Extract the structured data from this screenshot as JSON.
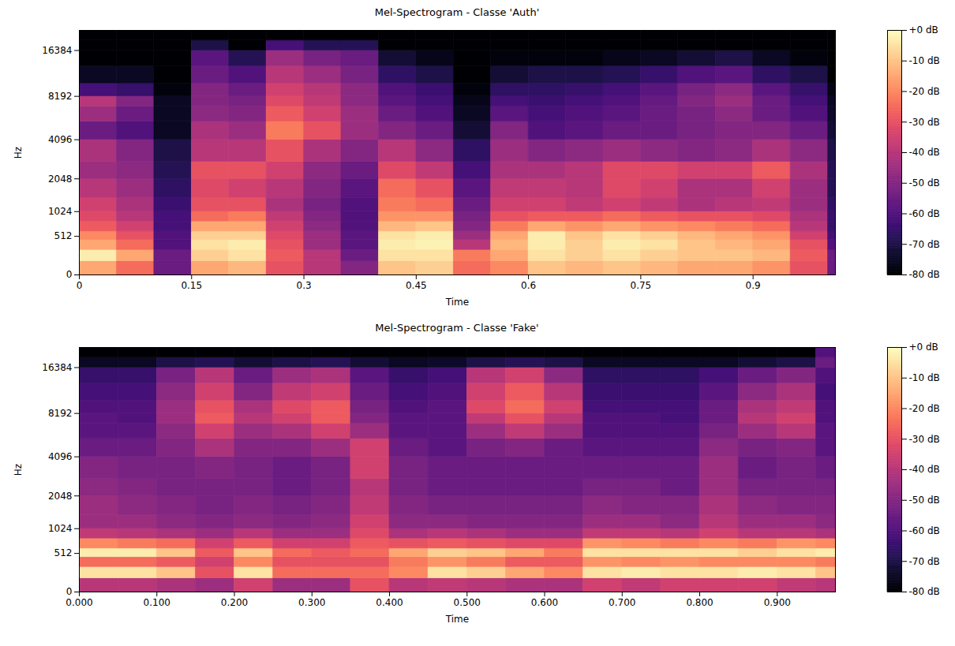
{
  "chart_data": [
    {
      "type": "heatmap",
      "title": "Mel-Spectrogram - Classe 'Auth'",
      "xlabel": "Time",
      "ylabel": "Hz",
      "xlim": [
        0,
        1.01
      ],
      "xticks": [
        0,
        0.15,
        0.3,
        0.45,
        0.6,
        0.75,
        0.9
      ],
      "ylim": [
        0,
        22050
      ],
      "yticks": [
        0,
        512,
        1024,
        2048,
        4096,
        8192,
        16384
      ],
      "color": "magma",
      "colorbar": {
        "lim": [
          -80,
          0
        ],
        "ticks": [
          {
            "value": 0,
            "label": "+0 dB"
          },
          {
            "value": -10,
            "label": "-10 dB"
          },
          {
            "value": -20,
            "label": "-20 dB"
          },
          {
            "value": -30,
            "label": "-30 dB"
          },
          {
            "value": -40,
            "label": "-40 dB"
          },
          {
            "value": -50,
            "label": "-50 dB"
          },
          {
            "value": -60,
            "label": "-60 dB"
          },
          {
            "value": -70,
            "label": "-70 dB"
          },
          {
            "value": -80,
            "label": "-80 dB"
          }
        ]
      },
      "x_edges": [
        0,
        0.05,
        0.1,
        0.15,
        0.2,
        0.25,
        0.3,
        0.35,
        0.4,
        0.45,
        0.5,
        0.55,
        0.6,
        0.65,
        0.7,
        0.75,
        0.8,
        0.85,
        0.9,
        0.95,
        1,
        1.01
      ],
      "y_edges": [
        0,
        150,
        300,
        450,
        600,
        800,
        1024,
        1400,
        2048,
        2800,
        4096,
        5500,
        7000,
        8192,
        10000,
        13000,
        16384,
        19000,
        22050
      ],
      "values": [
        [
          -15,
          -25,
          -55,
          -15,
          -12,
          -30,
          -40,
          -50,
          -10,
          -8,
          -25,
          -20,
          -10,
          -12,
          -10,
          -12,
          -15,
          -15,
          -18,
          -30,
          -55
        ],
        [
          -3,
          -15,
          -55,
          -8,
          -5,
          -28,
          -40,
          -55,
          -5,
          -5,
          -22,
          -15,
          -5,
          -8,
          -5,
          -8,
          -10,
          -10,
          -12,
          -28,
          -55
        ],
        [
          -15,
          -25,
          -60,
          -5,
          -3,
          -30,
          -45,
          -58,
          -3,
          -2,
          -40,
          -12,
          -3,
          -8,
          -3,
          -5,
          -10,
          -12,
          -15,
          -30,
          -60
        ],
        [
          -20,
          -30,
          -60,
          -8,
          -8,
          -32,
          -45,
          -58,
          -5,
          -3,
          -45,
          -15,
          -3,
          -10,
          -5,
          -8,
          -12,
          -15,
          -18,
          -35,
          -62
        ],
        [
          -28,
          -35,
          -62,
          -15,
          -15,
          -35,
          -48,
          -60,
          -12,
          -10,
          -50,
          -22,
          -15,
          -18,
          -15,
          -18,
          -20,
          -22,
          -25,
          -40,
          -65
        ],
        [
          -32,
          -40,
          -62,
          -25,
          -22,
          -38,
          -50,
          -60,
          -18,
          -18,
          -52,
          -30,
          -28,
          -28,
          -25,
          -28,
          -30,
          -30,
          -32,
          -42,
          -65
        ],
        [
          -35,
          -42,
          -64,
          -30,
          -30,
          -42,
          -52,
          -60,
          -22,
          -25,
          -55,
          -35,
          -35,
          -38,
          -35,
          -38,
          -42,
          -40,
          -38,
          -45,
          -66
        ],
        [
          -40,
          -45,
          -66,
          -32,
          -35,
          -40,
          -50,
          -58,
          -25,
          -30,
          -58,
          -38,
          -38,
          -40,
          -32,
          -35,
          -42,
          -42,
          -35,
          -45,
          -68
        ],
        [
          -45,
          -48,
          -68,
          -30,
          -30,
          -35,
          -48,
          -55,
          -32,
          -38,
          -62,
          -42,
          -42,
          -40,
          -32,
          -32,
          -35,
          -35,
          -28,
          -42,
          -68
        ],
        [
          -42,
          -50,
          -70,
          -40,
          -40,
          -30,
          -42,
          -50,
          -40,
          -48,
          -66,
          -45,
          -50,
          -48,
          -45,
          -48,
          -50,
          -48,
          -42,
          -48,
          -70
        ],
        [
          -55,
          -60,
          -75,
          -42,
          -45,
          -22,
          -30,
          -45,
          -50,
          -55,
          -72,
          -50,
          -60,
          -58,
          -55,
          -55,
          -52,
          -50,
          -50,
          -55,
          -72
        ],
        [
          -45,
          -55,
          -75,
          -48,
          -50,
          -28,
          -35,
          -45,
          -55,
          -60,
          -75,
          -58,
          -62,
          -60,
          -58,
          -55,
          -52,
          -48,
          -55,
          -60,
          -74
        ],
        [
          -40,
          -50,
          -75,
          -50,
          -52,
          -32,
          -38,
          -48,
          -58,
          -62,
          -76,
          -62,
          -64,
          -62,
          -60,
          -56,
          -50,
          -45,
          -55,
          -62,
          -75
        ],
        [
          -62,
          -65,
          -78,
          -50,
          -55,
          -35,
          -40,
          -48,
          -60,
          -64,
          -78,
          -66,
          -66,
          -65,
          -62,
          -58,
          -52,
          -48,
          -58,
          -65,
          -77
        ],
        [
          -75,
          -75,
          -80,
          -55,
          -60,
          -40,
          -45,
          -52,
          -66,
          -70,
          -80,
          -72,
          -70,
          -70,
          -68,
          -65,
          -60,
          -58,
          -66,
          -70,
          -80
        ],
        [
          -80,
          -80,
          -80,
          -58,
          -68,
          -45,
          -52,
          -55,
          -72,
          -76,
          -80,
          -78,
          -78,
          -78,
          -76,
          -75,
          -72,
          -70,
          -75,
          -78,
          -80
        ],
        [
          -80,
          -80,
          -80,
          -70,
          -80,
          -62,
          -68,
          -68,
          -80,
          -80,
          -80,
          -80,
          -80,
          -80,
          -80,
          -80,
          -80,
          -80,
          -80,
          -80,
          -80
        ],
        [
          -80,
          -80,
          -80,
          -80,
          -80,
          -80,
          -80,
          -80,
          -80,
          -80,
          -80,
          -80,
          -80,
          -80,
          -80,
          -80,
          -80,
          -80,
          -80,
          -80,
          -80
        ]
      ]
    },
    {
      "type": "heatmap",
      "title": "Mel-Spectrogram - Classe 'Fake'",
      "xlabel": "Time",
      "ylabel": "Hz",
      "xlim": [
        0,
        0.975
      ],
      "xticks": [
        {
          "value": 0,
          "label": "0.000"
        },
        {
          "value": 0.1,
          "label": "0.100"
        },
        {
          "value": 0.2,
          "label": "0.200"
        },
        {
          "value": 0.3,
          "label": "0.300"
        },
        {
          "value": 0.4,
          "label": "0.400"
        },
        {
          "value": 0.5,
          "label": "0.500"
        },
        {
          "value": 0.6,
          "label": "0.600"
        },
        {
          "value": 0.7,
          "label": "0.700"
        },
        {
          "value": 0.8,
          "label": "0.800"
        },
        {
          "value": 0.9,
          "label": "0.900"
        }
      ],
      "ylim": [
        0,
        22050
      ],
      "yticks": [
        0,
        512,
        1024,
        2048,
        4096,
        8192,
        16384
      ],
      "color": "magma",
      "colorbar": {
        "lim": [
          -80,
          0
        ],
        "ticks": [
          {
            "value": 0,
            "label": "+0 dB"
          },
          {
            "value": -10,
            "label": "-10 dB"
          },
          {
            "value": -20,
            "label": "-20 dB"
          },
          {
            "value": -30,
            "label": "-30 dB"
          },
          {
            "value": -40,
            "label": "-40 dB"
          },
          {
            "value": -50,
            "label": "-50 dB"
          },
          {
            "value": -60,
            "label": "-60 dB"
          },
          {
            "value": -70,
            "label": "-70 dB"
          },
          {
            "value": -80,
            "label": "-80 dB"
          }
        ]
      },
      "x_edges": [
        0,
        0.05,
        0.1,
        0.15,
        0.2,
        0.25,
        0.3,
        0.35,
        0.4,
        0.45,
        0.5,
        0.55,
        0.6,
        0.65,
        0.7,
        0.75,
        0.8,
        0.85,
        0.9,
        0.95,
        0.975
      ],
      "y_edges": [
        0,
        150,
        300,
        450,
        600,
        800,
        1024,
        1400,
        2048,
        2800,
        4096,
        5500,
        7000,
        8192,
        10000,
        13000,
        16384,
        19000,
        22050
      ],
      "values": [
        [
          -40,
          -40,
          -42,
          -45,
          -35,
          -45,
          -45,
          -30,
          -40,
          -38,
          -40,
          -42,
          -42,
          -35,
          -38,
          -35,
          -35,
          -35,
          -38,
          -40
        ],
        [
          -5,
          -5,
          -10,
          -30,
          -5,
          -25,
          -25,
          -25,
          -20,
          -5,
          -8,
          -15,
          -20,
          -5,
          -3,
          -5,
          -5,
          -3,
          -5,
          -10
        ],
        [
          -25,
          -25,
          -28,
          -35,
          -20,
          -30,
          -30,
          -30,
          -22,
          -18,
          -22,
          -28,
          -28,
          -18,
          -20,
          -18,
          -20,
          -20,
          -20,
          -22
        ],
        [
          -3,
          -3,
          -10,
          -28,
          -10,
          -25,
          -28,
          -25,
          -15,
          -8,
          -10,
          -15,
          -22,
          -5,
          -5,
          -5,
          -5,
          -8,
          -5,
          -3
        ],
        [
          -20,
          -22,
          -25,
          -35,
          -28,
          -35,
          -35,
          -28,
          -30,
          -28,
          -30,
          -32,
          -32,
          -18,
          -20,
          -22,
          -20,
          -22,
          -18,
          -20
        ],
        [
          -38,
          -40,
          -42,
          -45,
          -40,
          -45,
          -45,
          -32,
          -42,
          -40,
          -42,
          -45,
          -45,
          -38,
          -38,
          -40,
          -35,
          -40,
          -40,
          -42
        ],
        [
          -45,
          -45,
          -48,
          -50,
          -48,
          -50,
          -48,
          -35,
          -48,
          -48,
          -50,
          -50,
          -50,
          -45,
          -45,
          -48,
          -40,
          -45,
          -45,
          -48
        ],
        [
          -45,
          -48,
          -50,
          -52,
          -50,
          -52,
          -50,
          -38,
          -50,
          -52,
          -52,
          -52,
          -52,
          -48,
          -50,
          -50,
          -42,
          -48,
          -50,
          -50
        ],
        [
          -48,
          -50,
          -52,
          -52,
          -52,
          -55,
          -52,
          -40,
          -52,
          -55,
          -55,
          -55,
          -55,
          -52,
          -52,
          -55,
          -45,
          -52,
          -52,
          -52
        ],
        [
          -50,
          -52,
          -52,
          -50,
          -52,
          -55,
          -52,
          -35,
          -52,
          -55,
          -55,
          -55,
          -55,
          -55,
          -55,
          -55,
          -45,
          -55,
          -52,
          -55
        ],
        [
          -55,
          -55,
          -50,
          -42,
          -50,
          -50,
          -45,
          -35,
          -55,
          -58,
          -52,
          -50,
          -55,
          -58,
          -58,
          -58,
          -48,
          -52,
          -50,
          -58
        ],
        [
          -58,
          -58,
          -48,
          -35,
          -45,
          -42,
          -35,
          -45,
          -58,
          -58,
          -45,
          -38,
          -45,
          -60,
          -60,
          -60,
          -52,
          -45,
          -40,
          -58
        ],
        [
          -58,
          -60,
          -45,
          -28,
          -40,
          -35,
          -28,
          -50,
          -58,
          -58,
          -38,
          -30,
          -40,
          -60,
          -60,
          -62,
          -55,
          -40,
          -35,
          -60
        ],
        [
          -60,
          -60,
          -45,
          -30,
          -42,
          -32,
          -28,
          -52,
          -60,
          -58,
          -32,
          -25,
          -35,
          -62,
          -62,
          -62,
          -55,
          -42,
          -38,
          -60
        ],
        [
          -62,
          -62,
          -48,
          -35,
          -50,
          -38,
          -35,
          -55,
          -62,
          -60,
          -35,
          -28,
          -40,
          -64,
          -64,
          -64,
          -58,
          -48,
          -42,
          -62
        ],
        [
          -65,
          -65,
          -52,
          -40,
          -55,
          -45,
          -42,
          -58,
          -65,
          -62,
          -40,
          -35,
          -48,
          -66,
          -66,
          -66,
          -62,
          -55,
          -50,
          -60
        ],
        [
          -75,
          -75,
          -70,
          -68,
          -72,
          -70,
          -68,
          -72,
          -75,
          -74,
          -70,
          -68,
          -70,
          -75,
          -75,
          -75,
          -75,
          -72,
          -70,
          -55
        ],
        [
          -80,
          -80,
          -80,
          -80,
          -80,
          -80,
          -80,
          -80,
          -80,
          -80,
          -80,
          -80,
          -80,
          -80,
          -80,
          -80,
          -80,
          -80,
          -80,
          -60
        ]
      ]
    }
  ]
}
